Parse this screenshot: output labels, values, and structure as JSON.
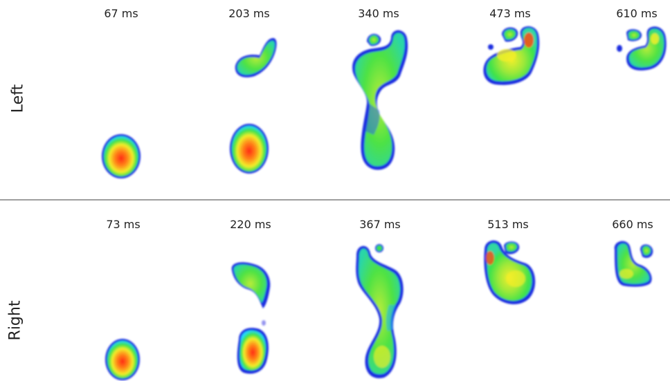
{
  "rows": [
    {
      "label": "Left",
      "times": [
        "67 ms",
        "203 ms",
        "340 ms",
        "473 ms",
        "610 ms"
      ]
    },
    {
      "label": "Right",
      "times": [
        "73 ms",
        "220 ms",
        "367 ms",
        "513 ms",
        "660 ms"
      ]
    }
  ],
  "colors": {
    "blue": "#1c2fe0",
    "cyan": "#26d8ff",
    "green": "#3ee24a",
    "yellow": "#f2ee2a",
    "orange": "#ff8a1a",
    "red": "#ff2a10",
    "divider": "#9e9e9e"
  }
}
